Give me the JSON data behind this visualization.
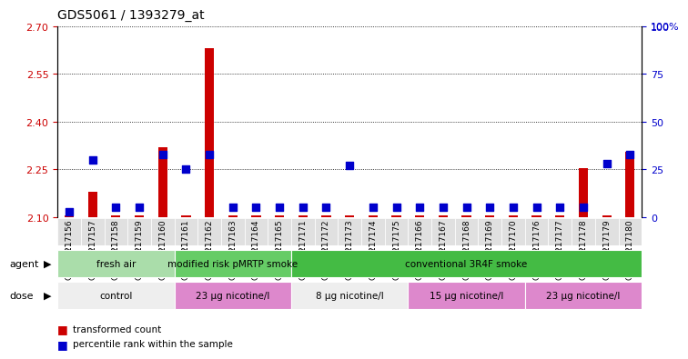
{
  "title": "GDS5061 / 1393279_at",
  "samples": [
    "GSM1217156",
    "GSM1217157",
    "GSM1217158",
    "GSM1217159",
    "GSM1217160",
    "GSM1217161",
    "GSM1217162",
    "GSM1217163",
    "GSM1217164",
    "GSM1217165",
    "GSM1217171",
    "GSM1217172",
    "GSM1217173",
    "GSM1217174",
    "GSM1217175",
    "GSM1217166",
    "GSM1217167",
    "GSM1217168",
    "GSM1217169",
    "GSM1217170",
    "GSM1217176",
    "GSM1217177",
    "GSM1217178",
    "GSM1217179",
    "GSM1217180"
  ],
  "transformed_counts": [
    2.105,
    2.18,
    2.105,
    2.105,
    2.32,
    2.105,
    2.63,
    2.105,
    2.105,
    2.105,
    2.105,
    2.105,
    2.105,
    2.105,
    2.105,
    2.105,
    2.105,
    2.105,
    2.105,
    2.105,
    2.105,
    2.105,
    2.255,
    2.105,
    2.305
  ],
  "percentile_ranks": [
    3,
    30,
    5,
    5,
    33,
    25,
    33,
    5,
    5,
    5,
    5,
    5,
    27,
    5,
    5,
    5,
    5,
    5,
    5,
    5,
    5,
    5,
    5,
    28,
    33
  ],
  "ylim_left": [
    2.1,
    2.7
  ],
  "ylim_right": [
    0,
    100
  ],
  "yticks_left": [
    2.1,
    2.25,
    2.4,
    2.55,
    2.7
  ],
  "yticks_right": [
    0,
    25,
    50,
    75,
    100
  ],
  "bar_color": "#cc0000",
  "dot_color": "#0000cc",
  "agent_groups": [
    {
      "label": "fresh air",
      "start": 0,
      "end": 4,
      "color": "#aaddaa"
    },
    {
      "label": "modified risk pMRTP smoke",
      "start": 5,
      "end": 9,
      "color": "#66cc66"
    },
    {
      "label": "conventional 3R4F smoke",
      "start": 10,
      "end": 24,
      "color": "#44bb44"
    }
  ],
  "dose_groups": [
    {
      "label": "control",
      "start": 0,
      "end": 4,
      "color": "#eeeeee"
    },
    {
      "label": "23 μg nicotine/l",
      "start": 5,
      "end": 9,
      "color": "#dd88cc"
    },
    {
      "label": "8 μg nicotine/l",
      "start": 10,
      "end": 14,
      "color": "#eeeeee"
    },
    {
      "label": "15 μg nicotine/l",
      "start": 15,
      "end": 19,
      "color": "#dd88cc"
    },
    {
      "label": "23 μg nicotine/l",
      "start": 20,
      "end": 24,
      "color": "#dd88cc"
    }
  ],
  "bar_width": 0.4,
  "dot_size": 30,
  "left_axis_color": "#cc0000",
  "right_axis_color": "#0000cc",
  "title_fontsize": 10,
  "tick_label_fontsize": 6.5,
  "group_label_fontsize": 7.5
}
